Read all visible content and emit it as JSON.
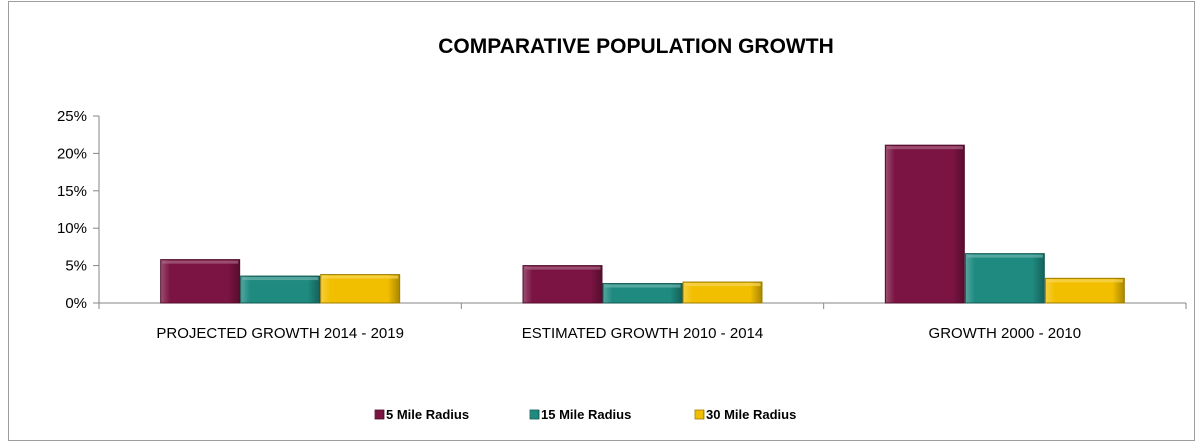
{
  "chart_data": {
    "type": "bar",
    "title": "COMPARATIVE POPULATION GROWTH",
    "xlabel": "",
    "ylabel": "",
    "categories": [
      "PROJECTED GROWTH 2014 - 2019",
      "ESTIMATED GROWTH 2010 - 2014",
      "GROWTH 2000 - 2010"
    ],
    "series": [
      {
        "name": "5 Mile Radius",
        "color": "#7b1442",
        "values": [
          0.058,
          0.05,
          0.211
        ]
      },
      {
        "name": "15 Mile Radius",
        "color": "#1e8a80",
        "values": [
          0.036,
          0.026,
          0.066
        ]
      },
      {
        "name": "30 Mile Radius",
        "color": "#f2bf00",
        "values": [
          0.038,
          0.028,
          0.033
        ]
      }
    ],
    "ylim": [
      0,
      0.25
    ],
    "yticks": [
      0,
      0.05,
      0.1,
      0.15,
      0.2,
      0.25
    ],
    "ytick_labels": [
      "0%",
      "5%",
      "10%",
      "15%",
      "20%",
      "25%"
    ],
    "grid": false,
    "legend_position": "bottom"
  }
}
